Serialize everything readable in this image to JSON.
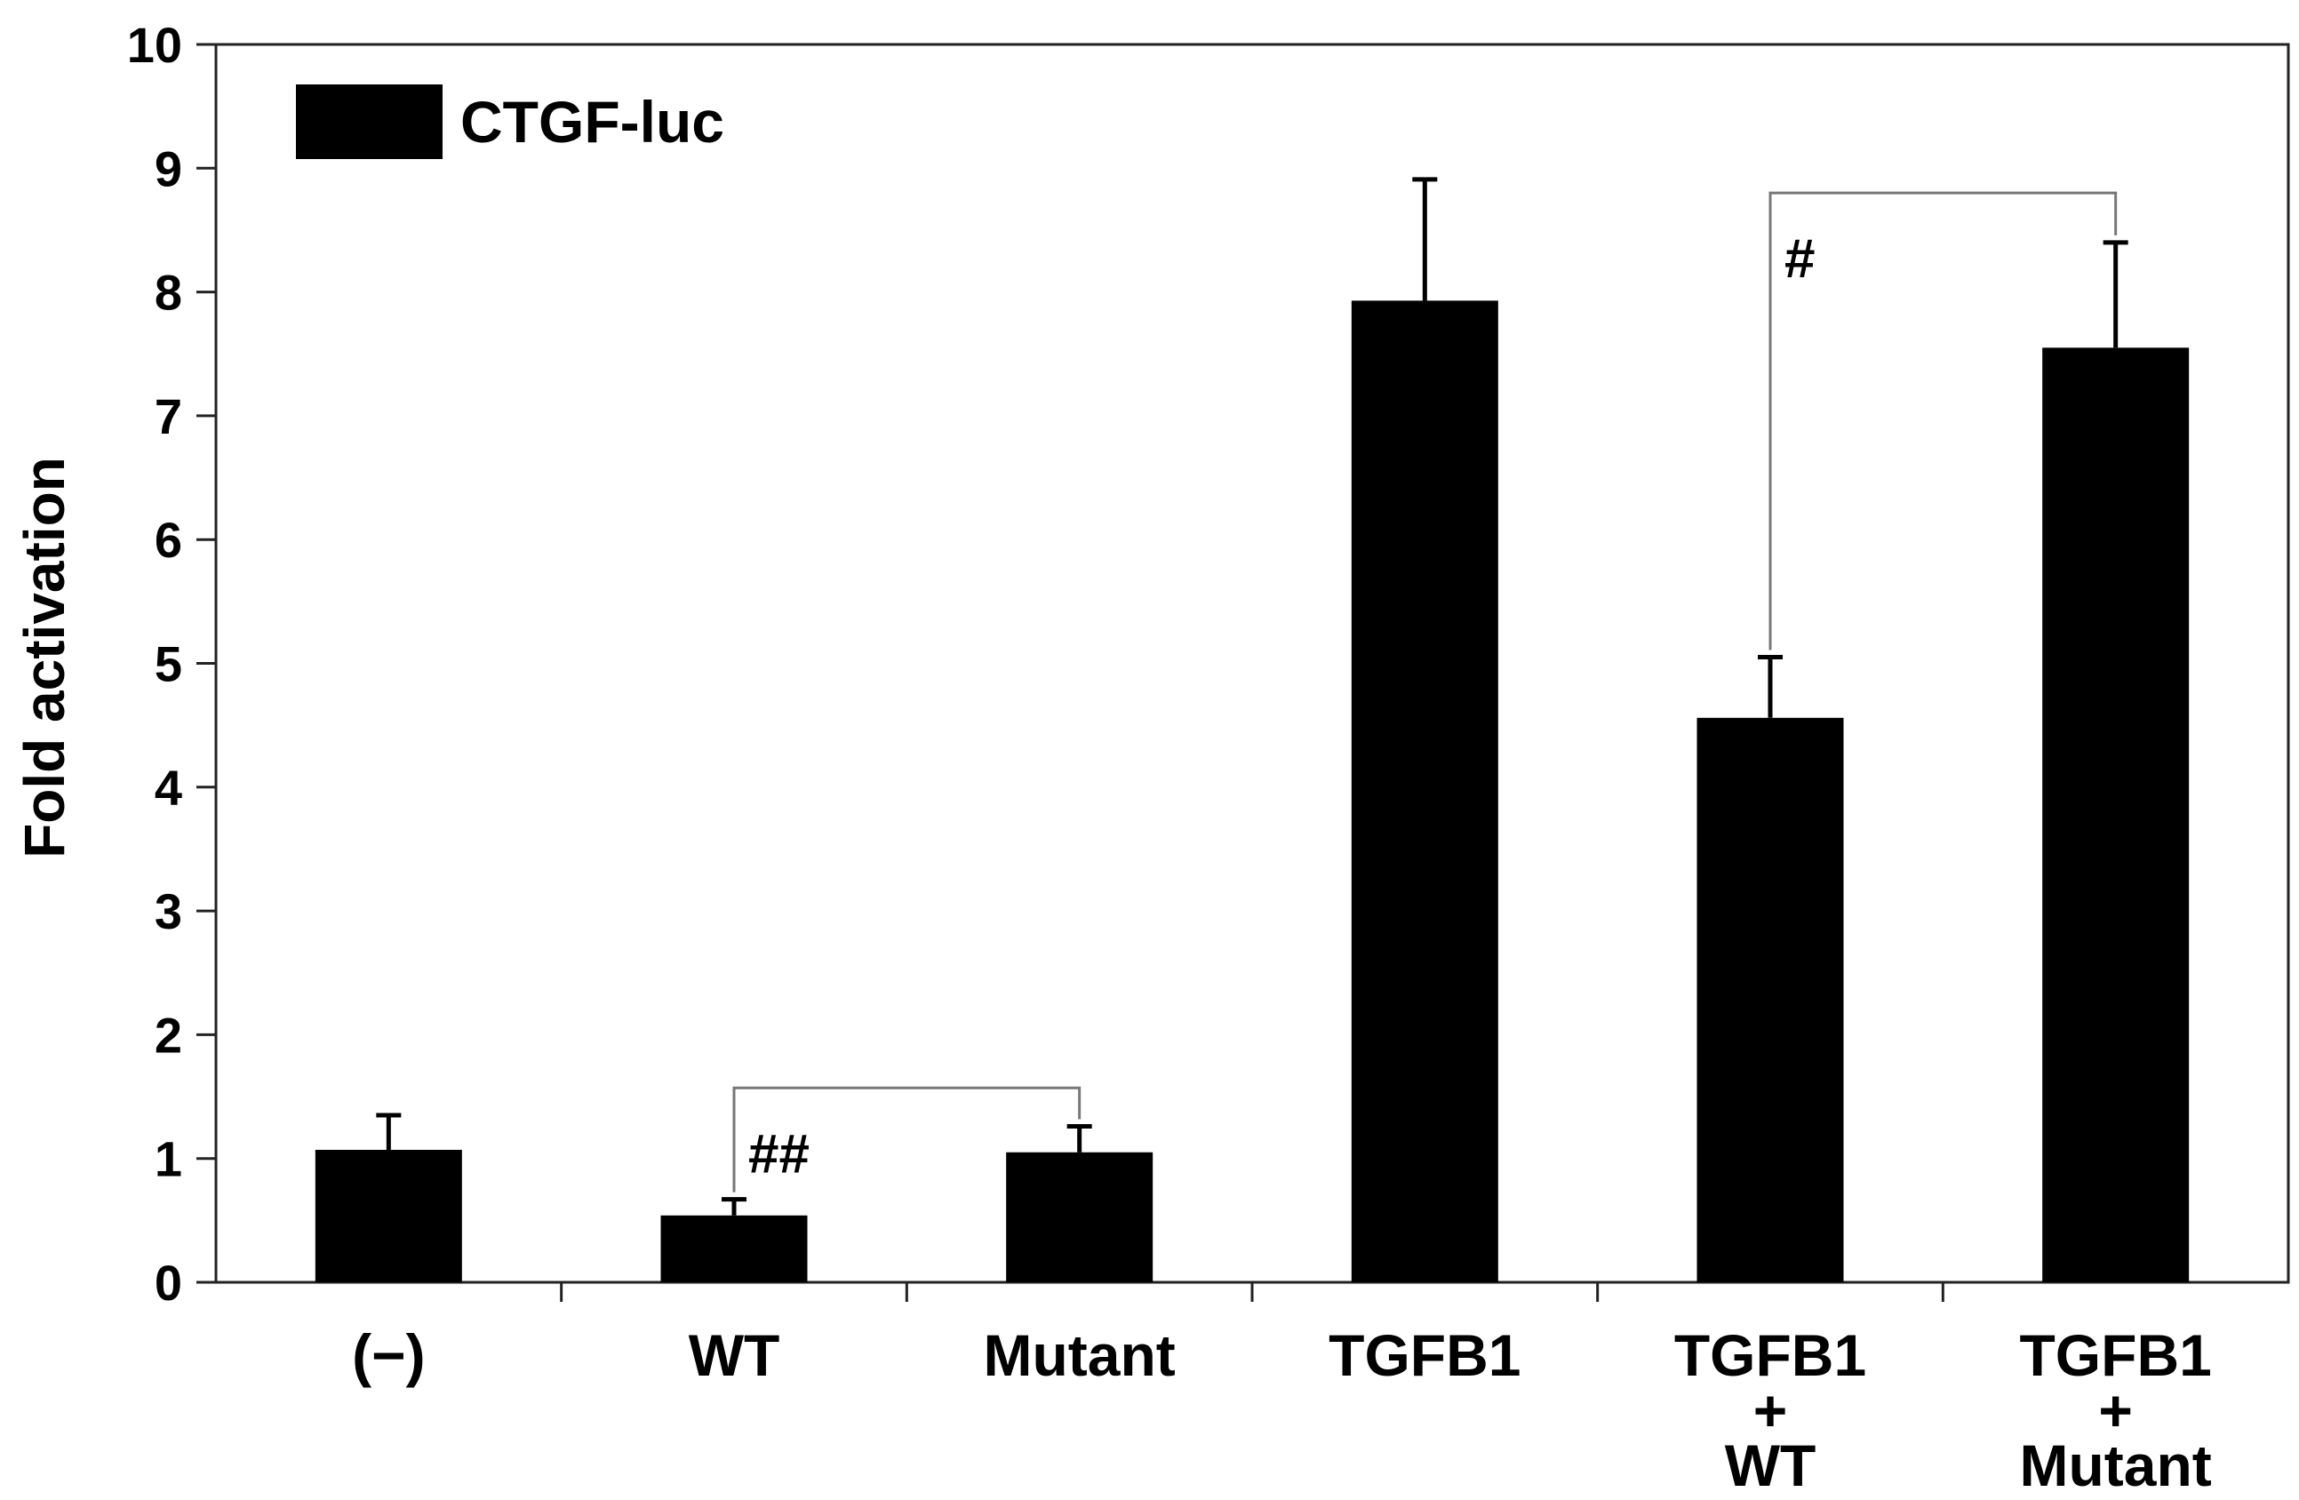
{
  "chart_data": {
    "type": "bar",
    "title": "",
    "xlabel": "",
    "ylabel": "Fold activation",
    "ylim": [
      0,
      10
    ],
    "yticks": [
      0,
      1,
      2,
      3,
      4,
      5,
      6,
      7,
      8,
      9,
      10
    ],
    "grid": false,
    "legend": {
      "position": "top-left",
      "entries": [
        "CTGF-luc"
      ]
    },
    "categories": [
      {
        "lines": [
          "(−)"
        ]
      },
      {
        "lines": [
          "WT"
        ]
      },
      {
        "lines": [
          "Mutant"
        ]
      },
      {
        "lines": [
          "TGFB1"
        ]
      },
      {
        "lines": [
          "TGFB1",
          "+",
          "WT"
        ]
      },
      {
        "lines": [
          "TGFB1",
          "+",
          "Mutant"
        ]
      }
    ],
    "series": [
      {
        "name": "CTGF-luc",
        "color": "#000000",
        "values": [
          1.07,
          0.54,
          1.05,
          7.93,
          4.56,
          7.55
        ],
        "errors": [
          0.28,
          0.13,
          0.21,
          0.98,
          0.49,
          0.85
        ]
      }
    ],
    "annotations": [
      {
        "label": "##",
        "from": 1,
        "to": 2,
        "y": 1.57
      },
      {
        "label": "#",
        "from": 4,
        "to": 5,
        "y": 8.8
      }
    ]
  }
}
